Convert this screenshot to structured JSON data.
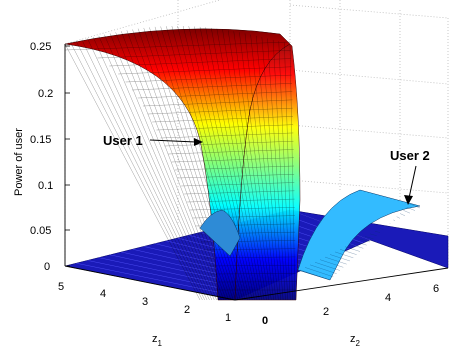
{
  "chart_data": {
    "type": "surface",
    "ylabel_z": "Power of user",
    "xlabel_z1": "z",
    "xlabel_z1_sub": "1",
    "xlabel_z2": "z",
    "xlabel_z2_sub": "2",
    "z_ticks": [
      "0",
      "0.05",
      "0.1",
      "0.15",
      "0.2",
      "0.25"
    ],
    "z1_ticks": [
      "5",
      "4",
      "3",
      "2",
      "1"
    ],
    "z2_ticks": [
      "0",
      "2",
      "4",
      "6"
    ],
    "z1_range": [
      0,
      5
    ],
    "z2_range": [
      0,
      6.5
    ],
    "z_range": [
      0,
      0.25
    ],
    "grid": true,
    "colormap": "jet",
    "series": [
      {
        "name": "User 1",
        "description_points": [
          {
            "z1": 5,
            "z2": 0,
            "power": 0.25
          },
          {
            "z1": 3,
            "z2": 0,
            "power": 0.24
          },
          {
            "z1": 2,
            "z2": 0,
            "power": 0.2
          },
          {
            "z1": 1.5,
            "z2": 0,
            "power": 0.15
          },
          {
            "z1": 1.2,
            "z2": 0,
            "power": 0.08
          },
          {
            "z1": 1,
            "z2": 0,
            "power": 0.0
          }
        ]
      },
      {
        "name": "User 2",
        "description_points": [
          {
            "z1": 0,
            "z2": 2,
            "power": 0.03
          },
          {
            "z1": 0,
            "z2": 4,
            "power": 0.06
          },
          {
            "z1": 0,
            "z2": 6.5,
            "power": 0.07
          }
        ]
      }
    ],
    "annotations": [
      {
        "text": "User 1"
      },
      {
        "text": "User 2"
      }
    ]
  }
}
